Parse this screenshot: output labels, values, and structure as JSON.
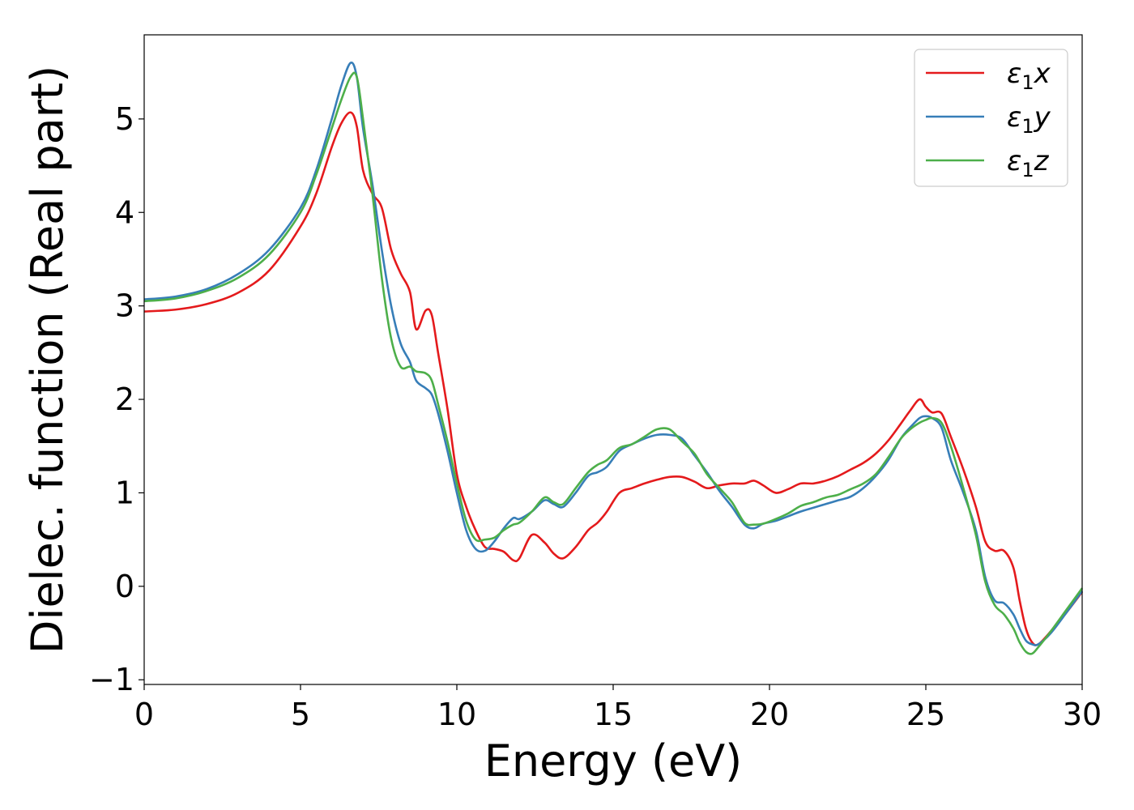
{
  "chart_data": {
    "type": "line",
    "title": "",
    "xlabel": "Energy (eV)",
    "ylabel": "Dielec. function (Real part)",
    "xlim": [
      0,
      30
    ],
    "ylim": [
      -1.05,
      5.9
    ],
    "xticks": [
      0,
      5,
      10,
      15,
      20,
      25,
      30
    ],
    "yticks": [
      -1,
      0,
      1,
      2,
      3,
      4,
      5
    ],
    "xtick_labels": [
      "0",
      "5",
      "10",
      "15",
      "20",
      "25",
      "30"
    ],
    "ytick_labels": [
      "−1",
      "0",
      "1",
      "2",
      "3",
      "4",
      "5"
    ],
    "grid": false,
    "legend": "top-right",
    "series": [
      {
        "name": "ε₁x",
        "name_symbol": "ε",
        "name_sub": "1",
        "name_var": "x",
        "color": "#e41a1c",
        "x": [
          0,
          1,
          2,
          3,
          4,
          5,
          5.5,
          6,
          6.3,
          6.6,
          6.8,
          7.0,
          7.3,
          7.6,
          7.9,
          8.2,
          8.5,
          8.7,
          9.0,
          9.2,
          9.4,
          9.7,
          10.0,
          10.3,
          10.6,
          10.9,
          11.2,
          11.5,
          11.8,
          12.0,
          12.4,
          12.8,
          13.1,
          13.4,
          13.8,
          14.2,
          14.5,
          14.8,
          15.2,
          15.6,
          16.0,
          16.4,
          16.8,
          17.2,
          17.6,
          18.0,
          18.4,
          18.8,
          19.2,
          19.5,
          19.8,
          20.2,
          20.6,
          21.0,
          21.4,
          21.8,
          22.2,
          22.6,
          23.0,
          23.4,
          23.8,
          24.2,
          24.5,
          24.8,
          25.0,
          25.2,
          25.5,
          25.8,
          26.2,
          26.6,
          26.9,
          27.2,
          27.5,
          27.8,
          28.0,
          28.2,
          28.4,
          28.6,
          29.0,
          29.5,
          30.0
        ],
        "y": [
          2.94,
          2.96,
          3.02,
          3.14,
          3.38,
          3.85,
          4.2,
          4.7,
          4.95,
          5.07,
          4.92,
          4.45,
          4.2,
          4.05,
          3.6,
          3.35,
          3.15,
          2.75,
          2.95,
          2.9,
          2.5,
          1.9,
          1.2,
          0.85,
          0.6,
          0.42,
          0.4,
          0.37,
          0.28,
          0.3,
          0.55,
          0.47,
          0.35,
          0.3,
          0.42,
          0.6,
          0.68,
          0.8,
          1.0,
          1.05,
          1.1,
          1.14,
          1.17,
          1.17,
          1.12,
          1.05,
          1.08,
          1.1,
          1.1,
          1.13,
          1.08,
          1.0,
          1.04,
          1.1,
          1.1,
          1.13,
          1.18,
          1.25,
          1.32,
          1.42,
          1.56,
          1.74,
          1.88,
          2.0,
          1.92,
          1.86,
          1.85,
          1.6,
          1.25,
          0.85,
          0.48,
          0.38,
          0.38,
          0.2,
          -0.15,
          -0.45,
          -0.6,
          -0.62,
          -0.48,
          -0.28,
          -0.06
        ]
      },
      {
        "name": "ε₁y",
        "name_symbol": "ε",
        "name_sub": "1",
        "name_var": "y",
        "color": "#377eb8",
        "x": [
          0,
          1,
          2,
          3,
          4,
          5,
          5.5,
          6,
          6.3,
          6.6,
          6.8,
          7.0,
          7.3,
          7.6,
          7.9,
          8.2,
          8.5,
          8.7,
          9.0,
          9.2,
          9.4,
          9.7,
          10.0,
          10.3,
          10.6,
          10.9,
          11.2,
          11.5,
          11.8,
          12.0,
          12.4,
          12.8,
          13.1,
          13.4,
          13.8,
          14.2,
          14.5,
          14.8,
          15.2,
          15.6,
          16.0,
          16.4,
          16.8,
          17.2,
          17.6,
          18.0,
          18.4,
          18.8,
          19.2,
          19.5,
          19.8,
          20.2,
          20.6,
          21.0,
          21.4,
          21.8,
          22.2,
          22.6,
          23.0,
          23.4,
          23.8,
          24.2,
          24.5,
          24.8,
          25.0,
          25.2,
          25.5,
          25.8,
          26.2,
          26.6,
          26.9,
          27.2,
          27.5,
          27.8,
          28.0,
          28.2,
          28.4,
          28.6,
          29.0,
          29.5,
          30.0
        ],
        "y": [
          3.07,
          3.1,
          3.18,
          3.34,
          3.6,
          4.05,
          4.45,
          5.0,
          5.35,
          5.6,
          5.45,
          4.9,
          4.3,
          3.6,
          3.0,
          2.6,
          2.4,
          2.2,
          2.12,
          2.05,
          1.85,
          1.45,
          1.0,
          0.6,
          0.4,
          0.38,
          0.48,
          0.62,
          0.73,
          0.72,
          0.8,
          0.92,
          0.88,
          0.85,
          1.0,
          1.18,
          1.22,
          1.28,
          1.45,
          1.52,
          1.58,
          1.62,
          1.62,
          1.58,
          1.4,
          1.22,
          1.02,
          0.85,
          0.66,
          0.62,
          0.67,
          0.7,
          0.75,
          0.8,
          0.84,
          0.88,
          0.92,
          0.96,
          1.05,
          1.18,
          1.35,
          1.58,
          1.7,
          1.8,
          1.82,
          1.8,
          1.7,
          1.35,
          1.0,
          0.6,
          0.1,
          -0.15,
          -0.18,
          -0.3,
          -0.45,
          -0.58,
          -0.62,
          -0.62,
          -0.5,
          -0.28,
          -0.05
        ]
      },
      {
        "name": "ε₁z",
        "name_symbol": "ε",
        "name_sub": "1",
        "name_var": "z",
        "color": "#4daf4a",
        "x": [
          0,
          1,
          2,
          3,
          4,
          5,
          5.5,
          6,
          6.3,
          6.6,
          6.8,
          7.0,
          7.3,
          7.6,
          7.9,
          8.2,
          8.5,
          8.7,
          9.0,
          9.2,
          9.4,
          9.7,
          10.0,
          10.3,
          10.6,
          10.9,
          11.2,
          11.5,
          11.8,
          12.0,
          12.4,
          12.8,
          13.1,
          13.4,
          13.8,
          14.2,
          14.5,
          14.8,
          15.2,
          15.6,
          16.0,
          16.4,
          16.8,
          17.2,
          17.6,
          18.0,
          18.4,
          18.8,
          19.2,
          19.5,
          19.8,
          20.2,
          20.6,
          21.0,
          21.4,
          21.8,
          22.2,
          22.6,
          23.0,
          23.4,
          23.8,
          24.2,
          24.5,
          24.8,
          25.0,
          25.2,
          25.5,
          25.8,
          26.2,
          26.6,
          26.9,
          27.2,
          27.5,
          27.8,
          28.0,
          28.2,
          28.4,
          28.6,
          29.0,
          29.5,
          30.0
        ],
        "y": [
          3.05,
          3.08,
          3.16,
          3.3,
          3.55,
          4.0,
          4.4,
          4.9,
          5.2,
          5.45,
          5.45,
          5.0,
          4.2,
          3.3,
          2.65,
          2.35,
          2.35,
          2.3,
          2.28,
          2.2,
          1.95,
          1.55,
          1.1,
          0.7,
          0.5,
          0.5,
          0.52,
          0.6,
          0.66,
          0.68,
          0.8,
          0.95,
          0.9,
          0.88,
          1.05,
          1.22,
          1.3,
          1.35,
          1.48,
          1.52,
          1.6,
          1.68,
          1.68,
          1.55,
          1.42,
          1.2,
          1.05,
          0.9,
          0.68,
          0.66,
          0.67,
          0.72,
          0.78,
          0.86,
          0.9,
          0.95,
          0.98,
          1.04,
          1.1,
          1.2,
          1.38,
          1.58,
          1.68,
          1.75,
          1.78,
          1.8,
          1.75,
          1.5,
          1.05,
          0.55,
          0.05,
          -0.2,
          -0.3,
          -0.45,
          -0.6,
          -0.7,
          -0.72,
          -0.65,
          -0.48,
          -0.25,
          -0.02
        ]
      }
    ]
  }
}
